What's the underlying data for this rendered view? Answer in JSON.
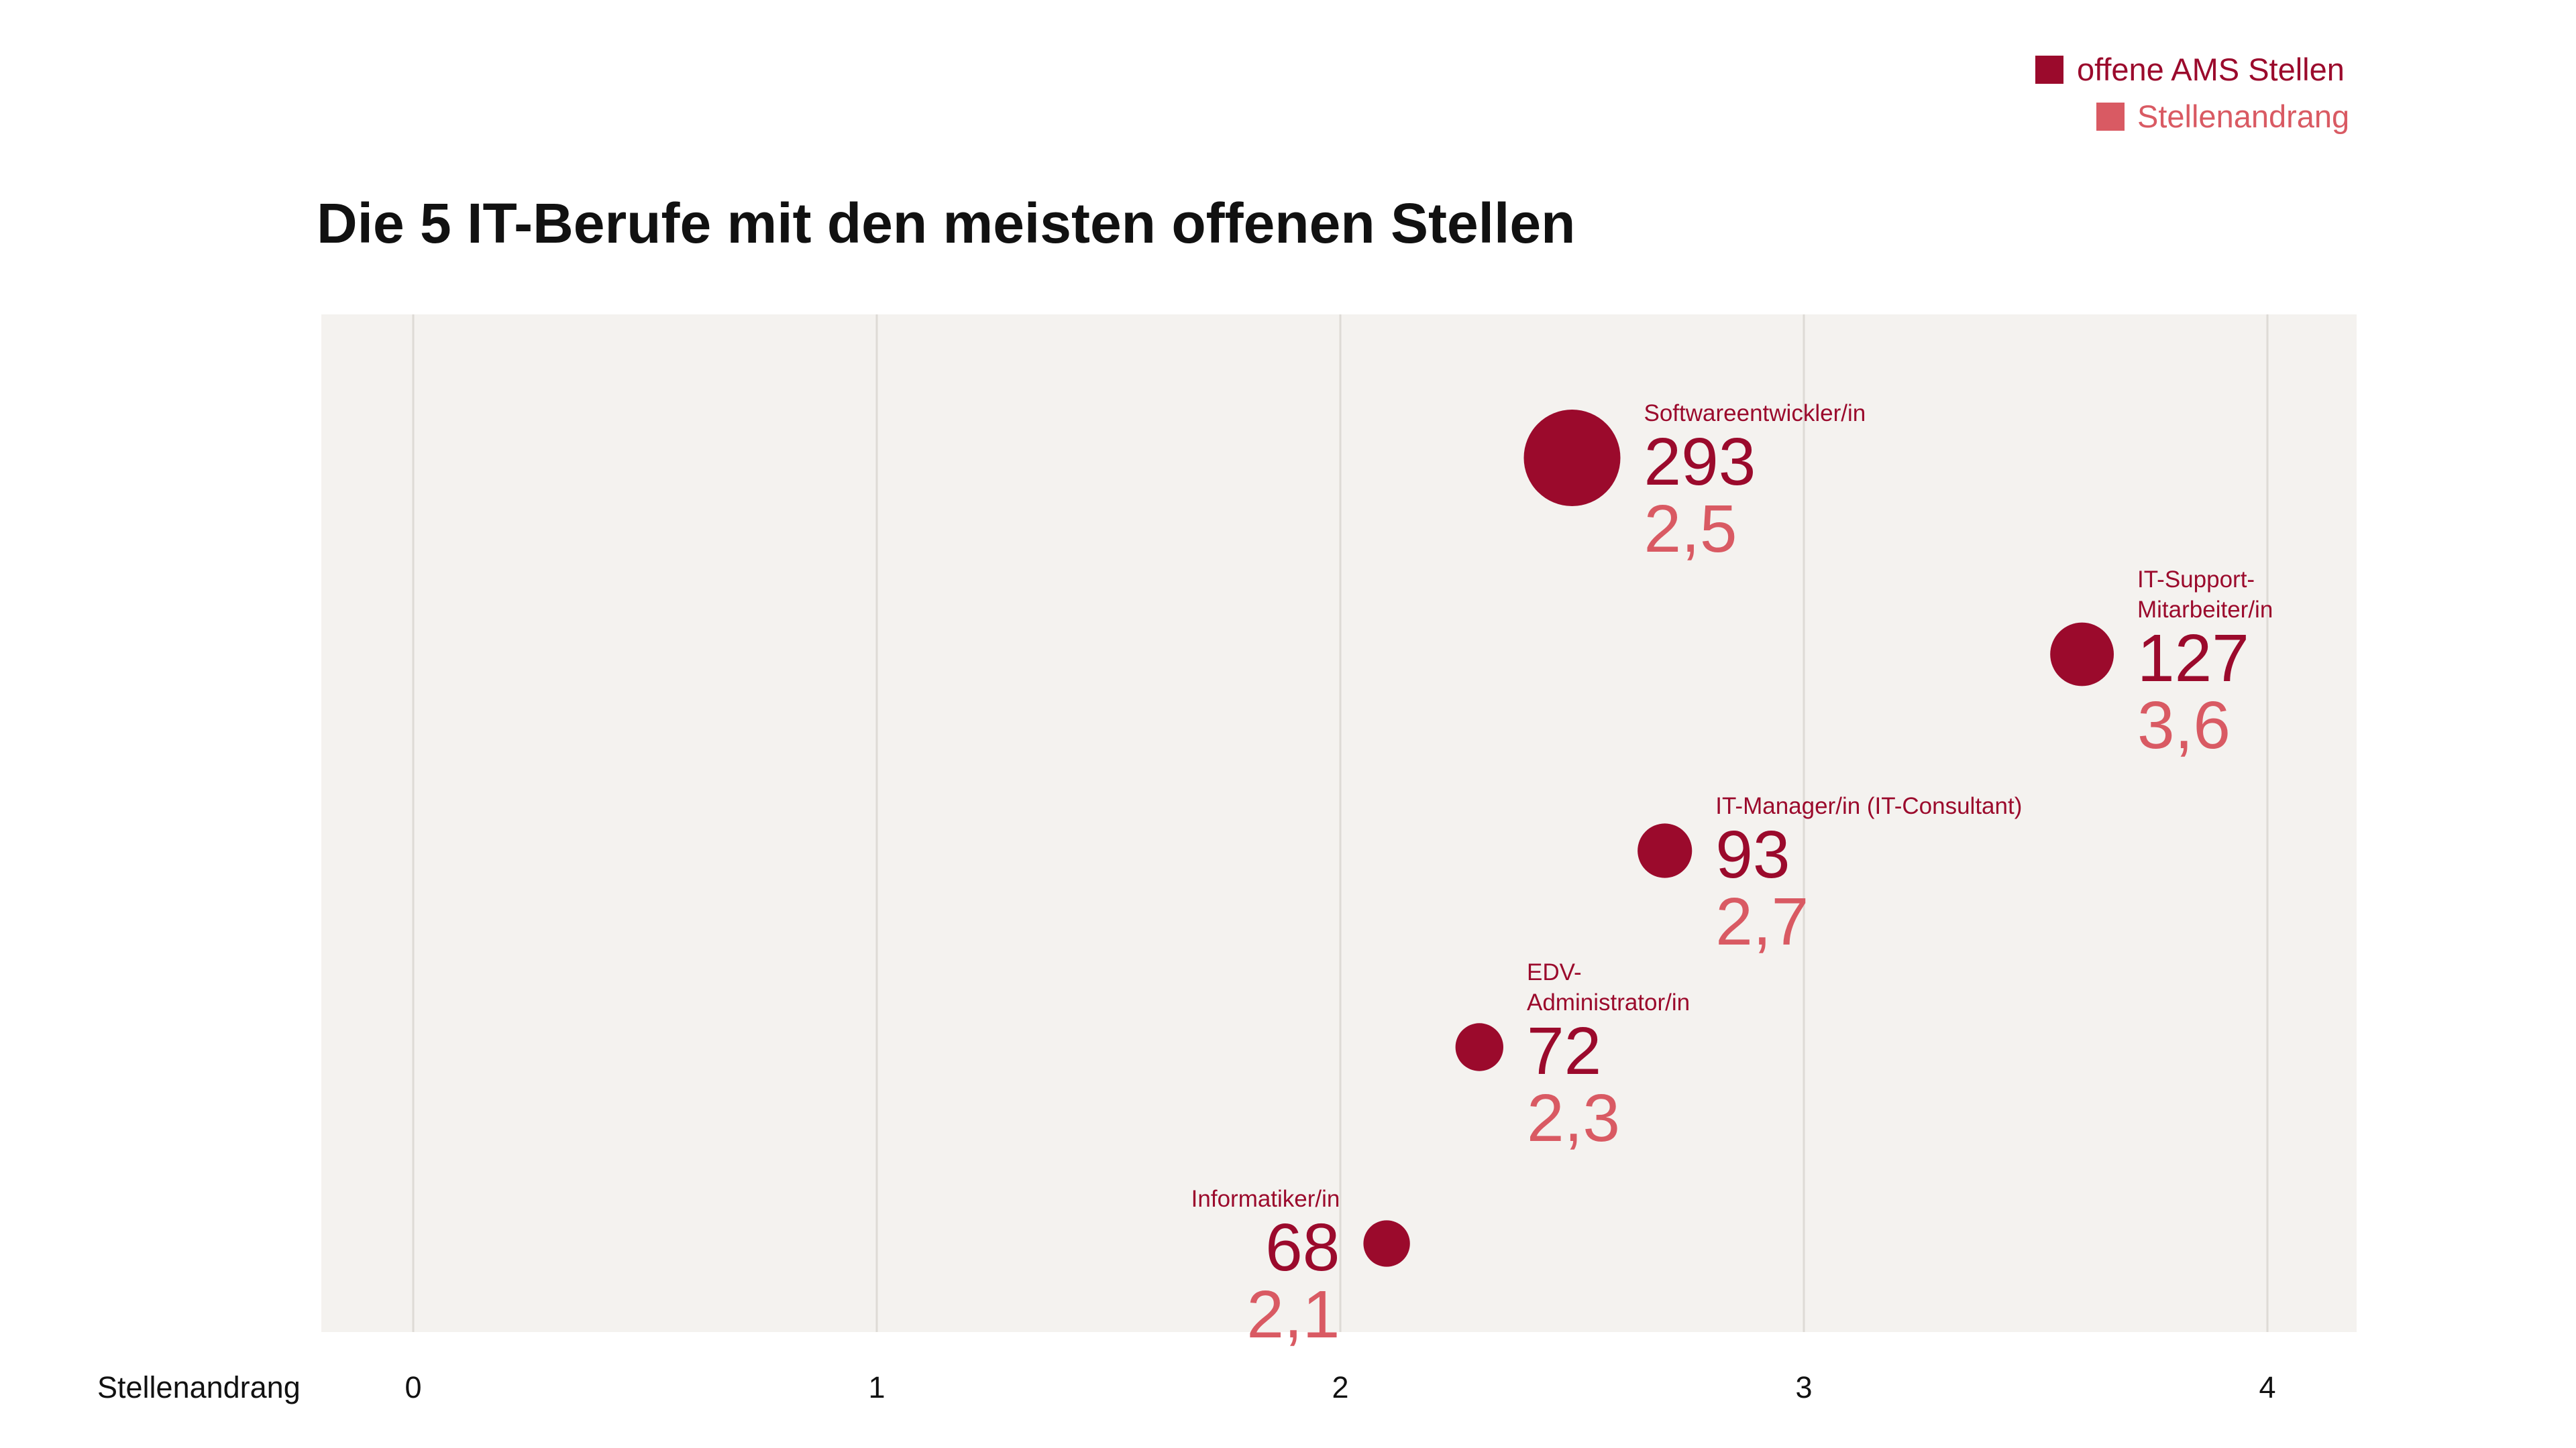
{
  "colors": {
    "primary": "#9b0a2c",
    "secondary": "#d95a63",
    "plot_background": "#f4f2ef",
    "grid": "#dedbd6"
  },
  "legend": {
    "items": [
      {
        "label": "offene AMS Stellen",
        "color": "#9b0a2c"
      },
      {
        "label": "Stellenandrang",
        "color": "#d95a63"
      }
    ]
  },
  "chart_data": {
    "type": "scatter",
    "title": "Die 5 IT-Berufe mit den meisten offenen Stellen",
    "xlabel": "Stellenandrang",
    "ylabel": "",
    "xlim": [
      -0.2,
      4.2
    ],
    "xticks": [
      "0",
      "1",
      "2",
      "3",
      "4"
    ],
    "grid": true,
    "legend_position": "top-right",
    "size_encoding": "offene AMS Stellen",
    "points": [
      {
        "label_lines": [
          "Softwareentwickler/in"
        ],
        "offene_stellen": 293,
        "stellenandrang": 2.5,
        "stellenandrang_display": "2,5",
        "rank": 1,
        "label_side": "right"
      },
      {
        "label_lines": [
          "IT-Support-",
          "Mitarbeiter/in"
        ],
        "offene_stellen": 127,
        "stellenandrang": 3.6,
        "stellenandrang_display": "3,6",
        "rank": 2,
        "label_side": "right"
      },
      {
        "label_lines": [
          "IT-Manager/in (IT-Consultant)"
        ],
        "offene_stellen": 93,
        "stellenandrang": 2.7,
        "stellenandrang_display": "2,7",
        "rank": 3,
        "label_side": "right"
      },
      {
        "label_lines": [
          "EDV-",
          "Administrator/in"
        ],
        "offene_stellen": 72,
        "stellenandrang": 2.3,
        "stellenandrang_display": "2,3",
        "rank": 4,
        "label_side": "right"
      },
      {
        "label_lines": [
          "Informatiker/in"
        ],
        "offene_stellen": 68,
        "stellenandrang": 2.1,
        "stellenandrang_display": "2,1",
        "rank": 5,
        "label_side": "left"
      }
    ]
  }
}
